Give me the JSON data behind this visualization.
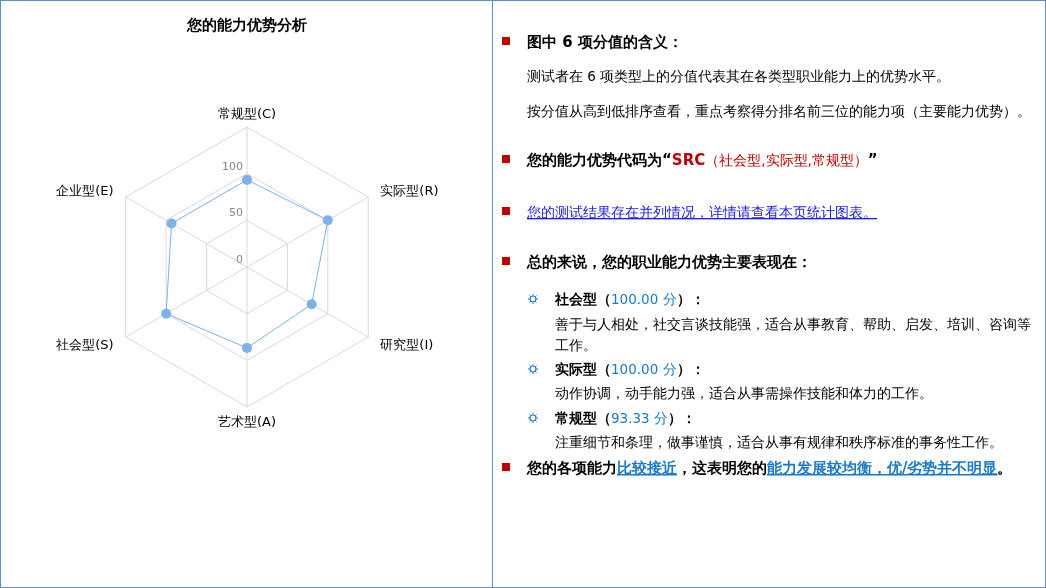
{
  "chart_data": [
    {
      "type": "radar",
      "title": "您的能力优势分析",
      "categories": [
        "常规型(C)",
        "实际型(R)",
        "研究型(I)",
        "艺术型(A)",
        "社会型(S)",
        "企业型(E)"
      ],
      "series": [
        {
          "color": "#7cb2e8",
          "values": [
            93.33,
            100,
            80,
            86.67,
            100,
            93.33
          ]
        }
      ],
      "ylim": [
        0,
        150
      ],
      "yticks": [
        0,
        50,
        100
      ],
      "grid": true,
      "marker": "circle"
    },
    {
      "type": "other",
      "annotations": [
        "图中 6 项分值的含义：",
        "测试者在 6 项类型上的分值代表其在各类型职业能力上的优势水平。",
        "按分值从高到低排序查看，重点考察得分排名前三位的能力项（主要能力优势）。",
        "您的能力优势代码为“",
        "SRC",
        "（社会型,实际型,常规型）",
        "”",
        "您的测试结果存在并列情况，详情请查看本页统计图表。",
        "总的来说，您的职业能力优势主要表现在：",
        "社会型（",
        "100.00 分",
        "）：",
        "善于与人相处，社交言谈技能强，适合从事教育、帮助、启发、培训、咨询等工作。",
        "实际型（",
        "100.00 分",
        "）：",
        "动作协调，动手能力强，适合从事需操作技能和体力的工作。",
        "常规型（",
        "93.33 分",
        "）：",
        "注重细节和条理，做事谨慎，适合从事有规律和秩序标准的事务性工作。",
        "您的各项能力",
        "比较接近",
        "，这表明您的",
        "能力发展较均衡，优/劣势并不明显",
        "。"
      ]
    }
  ]
}
